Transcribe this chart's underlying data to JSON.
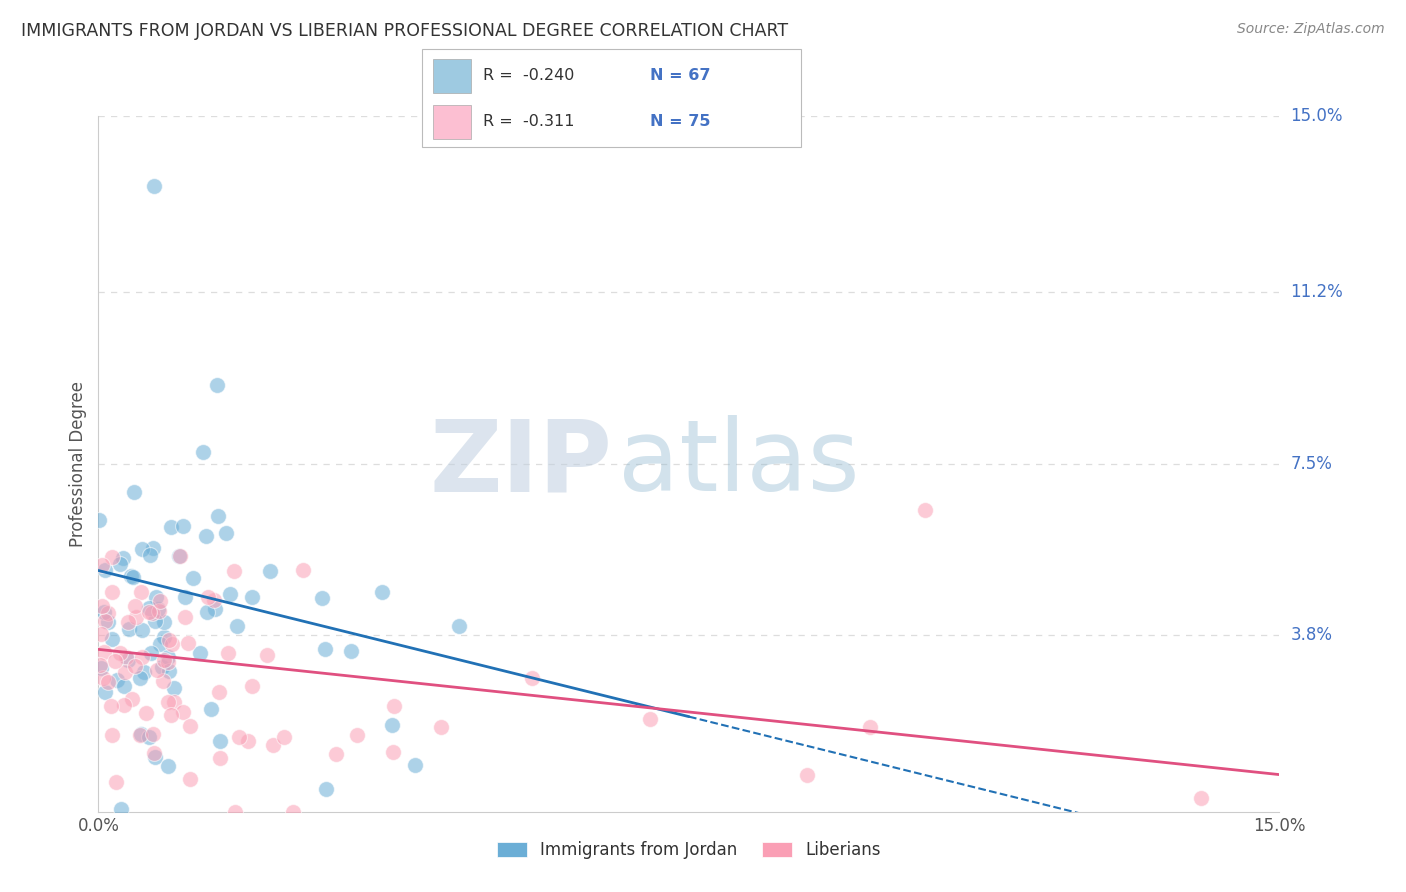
{
  "title": "IMMIGRANTS FROM JORDAN VS LIBERIAN PROFESSIONAL DEGREE CORRELATION CHART",
  "source": "Source: ZipAtlas.com",
  "ylabel": "Professional Degree",
  "right_ytick_vals": [
    3.8,
    7.5,
    11.2,
    15.0
  ],
  "right_ytick_labels": [
    "3.8%",
    "7.5%",
    "11.2%",
    "15.0%"
  ],
  "xmin": 0.0,
  "xmax": 15.0,
  "ymin": 0.0,
  "ymax": 15.0,
  "legend_label1": "Immigrants from Jordan",
  "legend_label2": "Liberians",
  "legend_r1": "R =  -0.240",
  "legend_n1": "N = 67",
  "legend_r2": "R =  -0.311",
  "legend_n2": "N = 75",
  "blue_scatter_color": "#6baed6",
  "pink_scatter_color": "#fa9fb5",
  "blue_line_color": "#2171b5",
  "pink_line_color": "#e05080",
  "blue_legend_color": "#9ecae1",
  "pink_legend_color": "#fcbfd2",
  "jordan_r": -0.24,
  "jordan_n": 67,
  "liberia_r": -0.311,
  "liberia_n": 75,
  "title_color": "#333333",
  "source_color": "#888888",
  "right_tick_color": "#4472c4",
  "ylabel_color": "#555555",
  "grid_color": "#dddddd",
  "watermark_zip_color": "#c8d8e8",
  "watermark_atlas_color": "#a8c0d8",
  "background": "#ffffff"
}
